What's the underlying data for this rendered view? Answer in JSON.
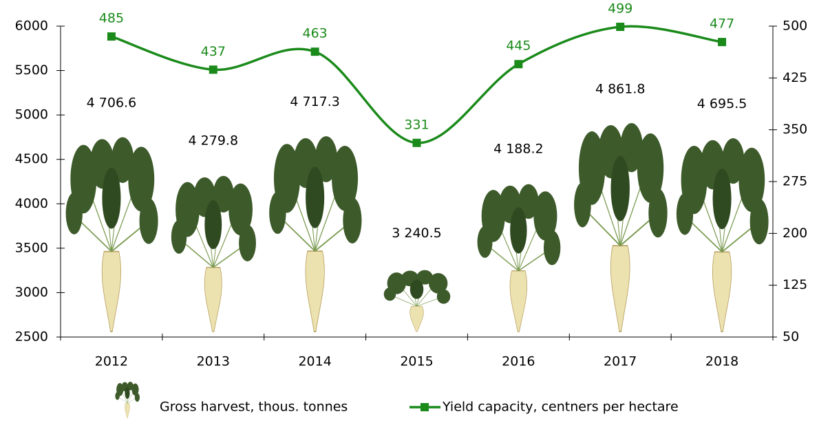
{
  "chart_data": {
    "type": "bar",
    "categories": [
      "2012",
      "2013",
      "2014",
      "2015",
      "2016",
      "2017",
      "2018"
    ],
    "series": [
      {
        "name": "Gross harvest, thous. tonnes",
        "type": "bar",
        "color": "#3d5a2a",
        "values": [
          4706.6,
          4279.8,
          4717.3,
          3240.5,
          4188.2,
          4861.8,
          4695.5
        ],
        "value_labels": [
          "4 706.6",
          "4 279.8",
          "4 717.3",
          "3 240.5",
          "4 188.2",
          "4 861.8",
          "4 695.5"
        ]
      },
      {
        "name": "Yield capacity, centners per hectare",
        "type": "line",
        "axis": "y2",
        "color": "#1a8a1a",
        "values": [
          485,
          437,
          463,
          331,
          445,
          499,
          477
        ]
      }
    ],
    "ylim": [
      2500,
      6000
    ],
    "yticks": [
      2500,
      3000,
      3500,
      4000,
      4500,
      5000,
      5500,
      6000
    ],
    "y2lim": [
      50,
      500
    ],
    "y2ticks": [
      50,
      125,
      200,
      275,
      350,
      425,
      500
    ]
  }
}
